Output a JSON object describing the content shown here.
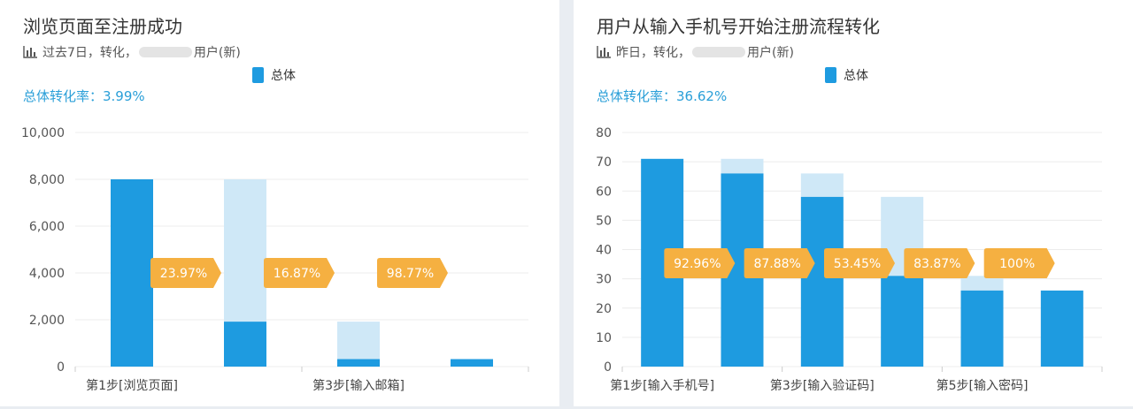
{
  "colors": {
    "bar": "#1e9be0",
    "bar_ghost": "#cfe8f7",
    "badge": "#f5b041",
    "rate_text": "#2a9fd8",
    "grid": "#ececec"
  },
  "left": {
    "title": "浏览页面至注册成功",
    "subtitle": {
      "icon": "bar-chart-icon",
      "pre": "过去7日，转化，",
      "post": "用户(新)"
    },
    "legend": "总体",
    "rate": "总体转化率：3.99%"
  },
  "right": {
    "title": "用户从输入手机号开始注册流程转化",
    "subtitle": {
      "icon": "bar-chart-icon",
      "pre": "昨日，转化，",
      "post": "用户(新)"
    },
    "legend": "总体",
    "rate": "总体转化率：36.62%"
  },
  "chart_data": [
    {
      "type": "bar",
      "title": "浏览页面至注册成功",
      "ylim": [
        0,
        10000
      ],
      "yticks": [
        "0",
        "2,000",
        "4,000",
        "6,000",
        "8,000",
        "10,000"
      ],
      "ytick_values": [
        0,
        2000,
        4000,
        6000,
        8000,
        10000
      ],
      "steps": 4,
      "xtick_labels": [
        {
          "step": 0,
          "label": "第1步[浏览页面]"
        },
        {
          "step": 2,
          "label": "第3步[输入邮箱]"
        }
      ],
      "values": [
        8000,
        1920,
        320,
        320
      ],
      "ghost_values": [
        null,
        8000,
        1920,
        320
      ],
      "conversion_rates": [
        "23.97%",
        "16.87%",
        "98.77%"
      ],
      "grid": true
    },
    {
      "type": "bar",
      "title": "用户从输入手机号开始注册流程转化",
      "ylim": [
        0,
        80
      ],
      "yticks": [
        "0",
        "10",
        "20",
        "30",
        "40",
        "50",
        "60",
        "70",
        "80"
      ],
      "ytick_values": [
        0,
        10,
        20,
        30,
        40,
        50,
        60,
        70,
        80
      ],
      "steps": 6,
      "xtick_labels": [
        {
          "step": 0,
          "label": "第1步[输入手机号]"
        },
        {
          "step": 2,
          "label": "第3步[输入验证码]"
        },
        {
          "step": 4,
          "label": "第5步[输入密码]"
        }
      ],
      "values": [
        71,
        66,
        58,
        31,
        26,
        26
      ],
      "ghost_values": [
        null,
        71,
        66,
        58,
        31,
        26
      ],
      "conversion_rates": [
        "92.96%",
        "87.88%",
        "53.45%",
        "83.87%",
        "100%"
      ],
      "grid": true
    }
  ]
}
